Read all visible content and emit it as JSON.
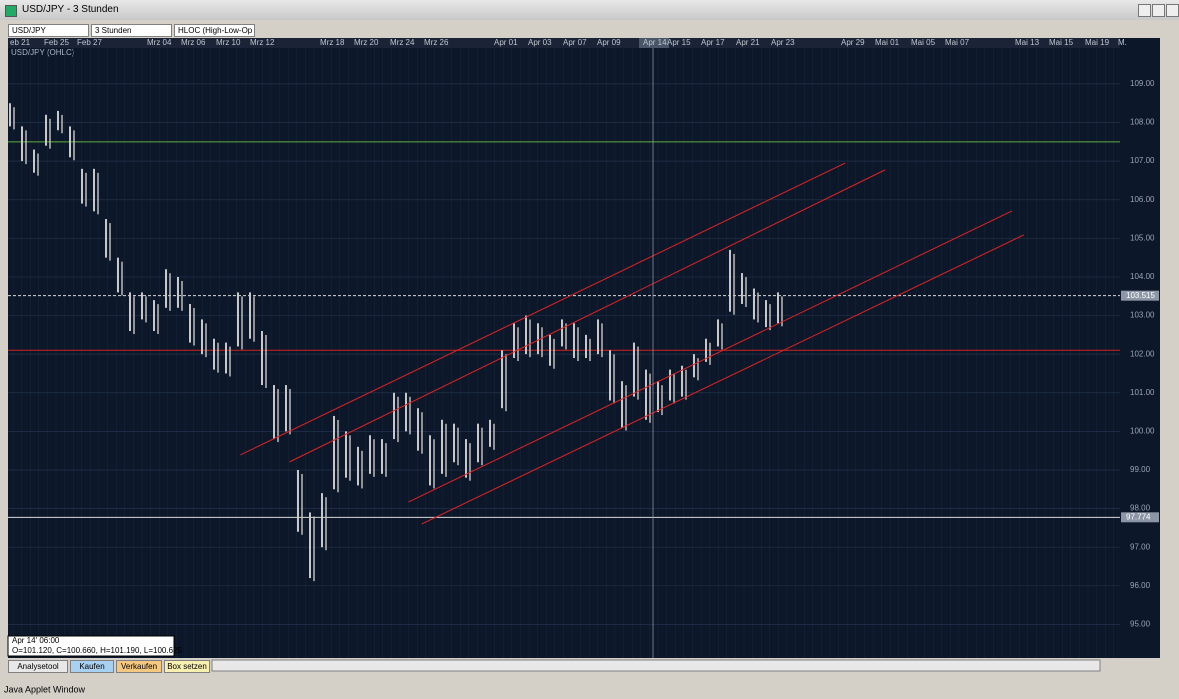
{
  "window": {
    "title": "USD/JPY - 3 Stunden",
    "status": "Java Applet Window"
  },
  "toolbar": {
    "instrument": "USD/JPY",
    "period": "3 Stunden",
    "style": "HLOC (High-Low-Op"
  },
  "date_labels": [
    "eb 21",
    "Feb 25",
    "Feb 27",
    "Mrz 04",
    "Mrz 06",
    "Mrz 10",
    "Mrz 12",
    "Mrz 18",
    "Mrz 20",
    "Mrz 24",
    "Mrz 26",
    "Apr 01",
    "Apr 03",
    "Apr 07",
    "Apr 09",
    "Apr 14",
    "Apr 15",
    "Apr 17",
    "Apr 21",
    "Apr 23",
    "Apr 29",
    "Mai 01",
    "Mai 05",
    "Mai 07",
    "Mai 13",
    "Mai 15",
    "Mai 19",
    "M."
  ],
  "info_box": {
    "time": "Apr 14' 06:00",
    "ohlc": "O=101.120, C=100.660, H=101.190, L=100.625"
  },
  "buttons": [
    "Analysetool",
    "Kaufen",
    "Verkaufen",
    "Box setzen"
  ],
  "chart_data": {
    "type": "ohlc",
    "title": "USD/JPY (OHLC)",
    "ylim": [
      94.13,
      109.93
    ],
    "yticks": [
      {
        "value": 95,
        "label": "95.00"
      },
      {
        "value": 96,
        "label": "96.00"
      },
      {
        "value": 97,
        "label": "97.00"
      },
      {
        "value": 98,
        "label": "98.00"
      },
      {
        "value": 99,
        "label": "99.00"
      },
      {
        "value": 100,
        "label": "100.00"
      },
      {
        "value": 101,
        "label": "101.00"
      },
      {
        "value": 102,
        "label": "102.00"
      },
      {
        "value": 103,
        "label": "103.00"
      },
      {
        "value": 104,
        "label": "104.00"
      },
      {
        "value": 105,
        "label": "105.00"
      },
      {
        "value": 106,
        "label": "106.00"
      },
      {
        "value": 107,
        "label": "107.00"
      },
      {
        "value": 108,
        "label": "108.00"
      },
      {
        "value": 109,
        "label": "109.00"
      }
    ],
    "color": "#c8c8c8",
    "high": [
      108.5,
      107.9,
      107.3,
      108.2,
      108.3,
      107.9,
      106.8,
      106.8,
      105.5,
      104.5,
      103.6,
      103.6,
      103.4,
      104.2,
      104.0,
      103.3,
      102.9,
      102.4,
      102.3,
      103.6,
      103.6,
      102.6,
      101.2,
      101.2,
      99.0,
      97.9,
      98.4,
      100.4,
      100.0,
      99.6,
      99.9,
      99.8,
      101.0,
      101.0,
      100.6,
      99.9,
      100.3,
      100.2,
      99.8,
      100.2,
      100.3,
      102.1,
      102.8,
      103.0,
      102.8,
      102.5,
      102.9,
      102.8,
      102.5,
      102.9,
      102.1,
      101.3,
      102.3,
      101.6,
      101.3,
      101.6,
      101.7,
      102.0,
      102.4,
      102.9,
      104.7,
      104.1,
      103.7,
      103.4,
      103.6
    ],
    "low": [
      107.9,
      107.0,
      106.7,
      107.4,
      107.8,
      107.1,
      105.9,
      105.7,
      104.5,
      103.6,
      102.6,
      102.9,
      102.6,
      103.2,
      103.2,
      102.3,
      102.0,
      101.6,
      101.5,
      102.2,
      102.4,
      101.2,
      99.8,
      100.0,
      97.4,
      96.2,
      97.0,
      98.5,
      98.8,
      98.6,
      98.9,
      98.9,
      99.8,
      100.0,
      99.5,
      98.6,
      98.9,
      99.2,
      98.8,
      99.2,
      99.6,
      100.6,
      101.9,
      102.0,
      102.0,
      101.7,
      102.2,
      101.9,
      101.9,
      102.0,
      100.8,
      100.1,
      100.9,
      100.3,
      100.5,
      100.8,
      100.9,
      101.4,
      101.8,
      102.2,
      103.1,
      103.3,
      102.9,
      102.7,
      102.8
    ],
    "hlines": [
      {
        "value": 107.5,
        "color": "#5fae3f"
      },
      {
        "value": 102.1,
        "color": "#d02020"
      },
      {
        "value": 103.515,
        "color": "#d8d8d8",
        "label": "103.515",
        "dashed": true
      },
      {
        "value": 97.774,
        "color": "#d8d8d8",
        "label": "97.774"
      }
    ],
    "trendlines": [
      {
        "x": [
          19.2,
          69.6
        ],
        "y": [
          99.39,
          106.95
        ]
      },
      {
        "x": [
          23.3,
          72.9
        ],
        "y": [
          99.21,
          106.77
        ]
      },
      {
        "x": [
          33.2,
          83.5
        ],
        "y": [
          98.17,
          105.71
        ]
      },
      {
        "x": [
          34.3,
          84.5
        ],
        "y": [
          97.6,
          105.09
        ]
      }
    ],
    "trend_color": "#e02424"
  }
}
